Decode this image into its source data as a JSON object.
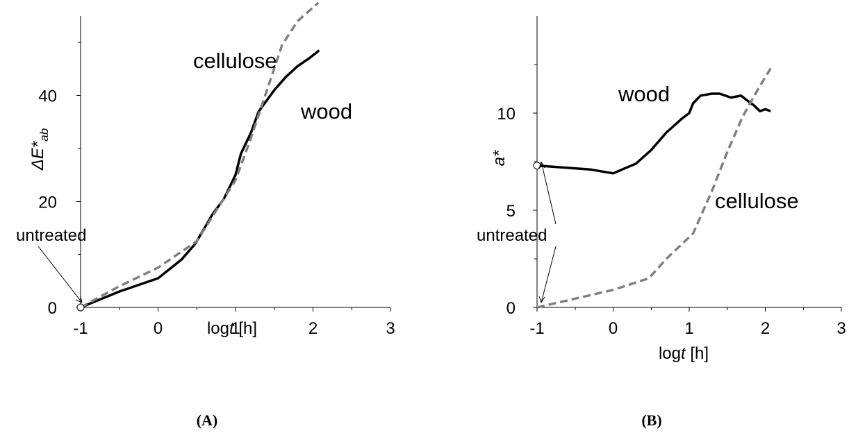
{
  "chart_data": [
    {
      "panel": "(A)",
      "type": "line",
      "xlabel_prefix": "log",
      "xlabel_var": "t",
      "xlabel_suffix": " [h]",
      "ylabel_main": "ΔE*",
      "ylabel_sub": "ab",
      "xlim": [
        -1,
        3
      ],
      "ylim": [
        0,
        55
      ],
      "xticks": [
        -1,
        0,
        1,
        2,
        3
      ],
      "yticks": [
        0,
        20,
        40
      ],
      "series": [
        {
          "name": "wood",
          "style": "solid",
          "color": "#000000",
          "x": [
            -1,
            -0.5,
            0,
            0.3,
            0.48,
            0.6,
            0.7,
            0.85,
            1.0,
            1.07,
            1.2,
            1.3,
            1.5,
            1.65,
            1.8,
            1.95,
            2.08
          ],
          "y": [
            0,
            3.0,
            5.5,
            9.0,
            12.0,
            15.0,
            17.5,
            20.5,
            25.0,
            29.0,
            33.0,
            37.0,
            41.0,
            43.5,
            45.5,
            47.0,
            48.5
          ]
        },
        {
          "name": "cellulose",
          "style": "dashed",
          "color": "#808080",
          "x": [
            -1,
            -0.5,
            0,
            0.5,
            1.0,
            1.2,
            1.6,
            1.8,
            2.07
          ],
          "y": [
            0,
            4.0,
            7.5,
            12.5,
            24.0,
            32.0,
            49.5,
            54.0,
            57.5
          ]
        }
      ],
      "series_labels": {
        "wood": "wood",
        "cellulose": "cellulose"
      },
      "annotation": "untreated",
      "marker": {
        "x": -1,
        "y": 0
      }
    },
    {
      "panel": "(B)",
      "type": "line",
      "xlabel_prefix": "log",
      "xlabel_var": "t",
      "xlabel_suffix": " [h]",
      "ylabel_main": "a*",
      "xlim": [
        -1,
        3
      ],
      "ylim": [
        0,
        15
      ],
      "xticks": [
        -1,
        0,
        1,
        2,
        3
      ],
      "yticks": [
        0,
        5,
        10
      ],
      "series": [
        {
          "name": "wood",
          "style": "solid",
          "color": "#000000",
          "x": [
            -1,
            -0.3,
            0,
            0.3,
            0.5,
            0.7,
            0.9,
            1.0,
            1.05,
            1.15,
            1.3,
            1.4,
            1.55,
            1.68,
            1.78,
            1.85,
            1.93,
            2.0,
            2.07
          ],
          "y": [
            7.3,
            7.1,
            6.9,
            7.4,
            8.1,
            9.0,
            9.7,
            10.0,
            10.5,
            10.9,
            11.0,
            11.0,
            10.8,
            10.9,
            10.6,
            10.4,
            10.1,
            10.2,
            10.1
          ]
        },
        {
          "name": "cellulose",
          "style": "dashed",
          "color": "#808080",
          "x": [
            -1,
            0,
            0.47,
            0.7,
            1.05,
            1.3,
            1.5,
            1.7,
            1.9,
            2.07
          ],
          "y": [
            0,
            0.9,
            1.5,
            2.5,
            3.8,
            6.0,
            8.0,
            9.8,
            11.2,
            12.3
          ]
        }
      ],
      "series_labels": {
        "wood": "wood",
        "cellulose": "cellulose"
      },
      "annotation": "untreated",
      "marker": {
        "x": -1,
        "y": 7.3
      }
    }
  ]
}
